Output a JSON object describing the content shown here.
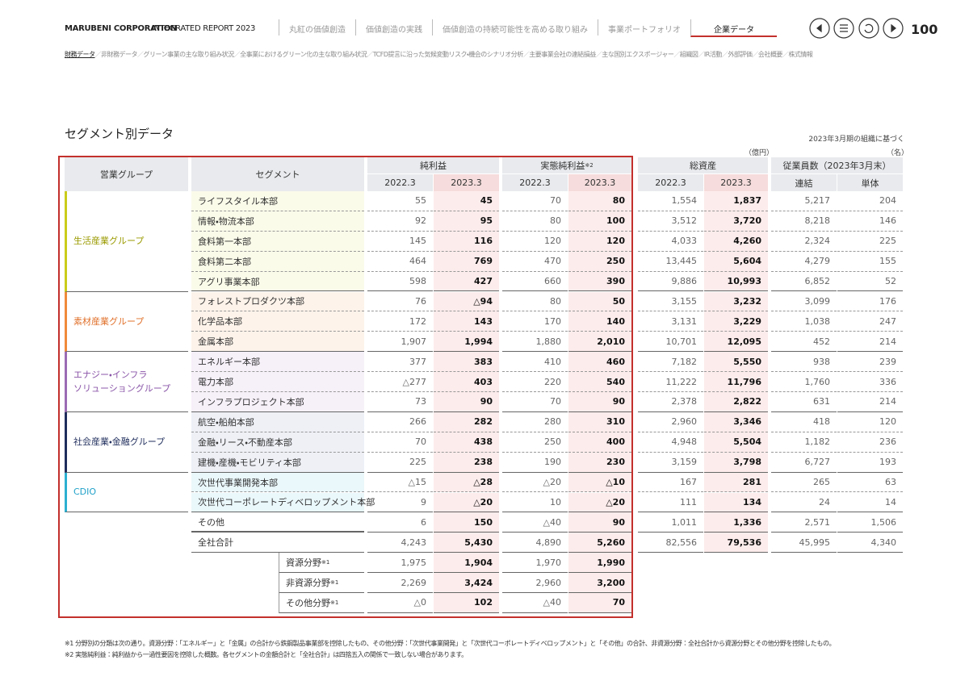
{
  "header": {
    "brand": "MARUBENI CORPORATION",
    "report": "INTEGRATED REPORT 2023",
    "page": "100",
    "tabs": [
      "丸紅の価値創造",
      "価値創造の実践",
      "価値創造の持続可能性を高める取り組み",
      "事業ポートフォリオ",
      "企業データ"
    ],
    "subnav": [
      "財務データ",
      "非財務データ",
      "グリーン事業の主な取り組み状況",
      "全事業におけるグリーン化の主な取り組み状況",
      "TCFD提言に沿った気候変動リスク・機会のシナリオ分析",
      "主要事業会社の連結損益",
      "主な国別エクスポージャー",
      "組織図",
      "IR活動",
      "外部評価",
      "会社概要",
      "株式情報"
    ]
  },
  "section": {
    "title": "セグメント別データ",
    "basis": "2023年3月期の組織に基づく",
    "unit_money": "（億円）",
    "unit_people": "（名）"
  },
  "table": {
    "group_header": "営業グループ",
    "segment_header": "セグメント",
    "column_groups": [
      {
        "label": "純利益"
      },
      {
        "label": "実態純利益",
        "note": "※2"
      },
      {
        "label": "総資産"
      },
      {
        "label": "従業員数（2023年3月末）"
      }
    ],
    "subheaders": [
      "2022.3",
      "2023.3",
      "2022.3",
      "2023.3",
      "2022.3",
      "2023.3",
      "連結",
      "単体"
    ],
    "groups": [
      {
        "name": "生活産業グループ",
        "rows": [
          {
            "segment": "ライフスタイル本部",
            "values": [
              "55",
              "45",
              "70",
              "80",
              "1,554",
              "1,837",
              "5,217",
              "204"
            ]
          },
          {
            "segment": "情報・物流本部",
            "values": [
              "92",
              "95",
              "80",
              "100",
              "3,512",
              "3,720",
              "8,218",
              "146"
            ]
          },
          {
            "segment": "食料第一本部",
            "values": [
              "145",
              "116",
              "120",
              "120",
              "4,033",
              "4,260",
              "2,324",
              "225"
            ]
          },
          {
            "segment": "食料第二本部",
            "values": [
              "464",
              "769",
              "470",
              "250",
              "13,445",
              "5,604",
              "4,279",
              "155"
            ]
          },
          {
            "segment": "アグリ事業本部",
            "values": [
              "598",
              "427",
              "660",
              "390",
              "9,886",
              "10,993",
              "6,852",
              "52"
            ]
          }
        ]
      },
      {
        "name": "素材産業グループ",
        "rows": [
          {
            "segment": "フォレストプロダクツ本部",
            "values": [
              "76",
              "△94",
              "80",
              "50",
              "3,155",
              "3,232",
              "3,099",
              "176"
            ]
          },
          {
            "segment": "化学品本部",
            "values": [
              "172",
              "143",
              "170",
              "140",
              "3,131",
              "3,229",
              "1,038",
              "247"
            ]
          },
          {
            "segment": "金属本部",
            "values": [
              "1,907",
              "1,994",
              "1,880",
              "2,010",
              "10,701",
              "12,095",
              "452",
              "214"
            ]
          }
        ]
      },
      {
        "name": "エナジー・インフラ\nソリューショングループ",
        "rows": [
          {
            "segment": "エネルギー本部",
            "values": [
              "377",
              "383",
              "410",
              "460",
              "7,182",
              "5,550",
              "938",
              "239"
            ]
          },
          {
            "segment": "電力本部",
            "values": [
              "△277",
              "403",
              "220",
              "540",
              "11,222",
              "11,796",
              "1,760",
              "336"
            ]
          },
          {
            "segment": "インフラプロジェクト本部",
            "values": [
              "73",
              "90",
              "70",
              "90",
              "2,378",
              "2,822",
              "631",
              "214"
            ]
          }
        ]
      },
      {
        "name": "社会産業・金融グループ",
        "rows": [
          {
            "segment": "航空・船舶本部",
            "values": [
              "266",
              "282",
              "280",
              "310",
              "2,960",
              "3,346",
              "418",
              "120"
            ]
          },
          {
            "segment": "金融・リース・不動産本部",
            "values": [
              "70",
              "438",
              "250",
              "400",
              "4,948",
              "5,504",
              "1,182",
              "236"
            ]
          },
          {
            "segment": "建機・産機・モビリティ本部",
            "values": [
              "225",
              "238",
              "190",
              "230",
              "3,159",
              "3,798",
              "6,727",
              "193"
            ]
          }
        ]
      },
      {
        "name": "CDIO",
        "rows": [
          {
            "segment": "次世代事業開発本部",
            "values": [
              "△15",
              "△28",
              "△20",
              "△10",
              "167",
              "281",
              "265",
              "63"
            ]
          },
          {
            "segment": "次世代コーポレートディベロップメント本部",
            "values": [
              "9",
              "△20",
              "10",
              "△20",
              "111",
              "134",
              "24",
              "14"
            ]
          }
        ]
      }
    ],
    "other_rows": [
      {
        "segment": "その他",
        "values": [
          "6",
          "150",
          "△40",
          "90",
          "1,011",
          "1,336",
          "2,571",
          "1,506"
        ]
      },
      {
        "segment": "全社合計",
        "values": [
          "4,243",
          "5,430",
          "4,890",
          "5,260",
          "82,556",
          "79,536",
          "45,995",
          "4,340"
        ]
      }
    ],
    "sub_rows": [
      {
        "segment": "資源分野",
        "note": "※1",
        "values": [
          "1,975",
          "1,904",
          "1,970",
          "1,990"
        ]
      },
      {
        "segment": "非資源分野",
        "note": "※1",
        "values": [
          "2,269",
          "3,424",
          "2,960",
          "3,200"
        ]
      },
      {
        "segment": "その他分野",
        "note": "※1",
        "values": [
          "△0",
          "102",
          "△40",
          "70"
        ]
      }
    ]
  },
  "footnotes": [
    "※1 分野別の分類は次の通り。資源分野：「エネルギー」と「金属」の合計から鉄鋼製品事業部を控除したもの、その他分野：「次世代事業開発」と「次世代コーポレートディベロップメント」と「その他」の合計、非資源分野：全社合計から資源分野とその他分野を控除したもの。",
    "※2 実態純利益：純利益から一過性要因を控除した概数。各セグメントの金額合計と「全社合計」は四捨五入の関係で一致しない場合があります。"
  ]
}
